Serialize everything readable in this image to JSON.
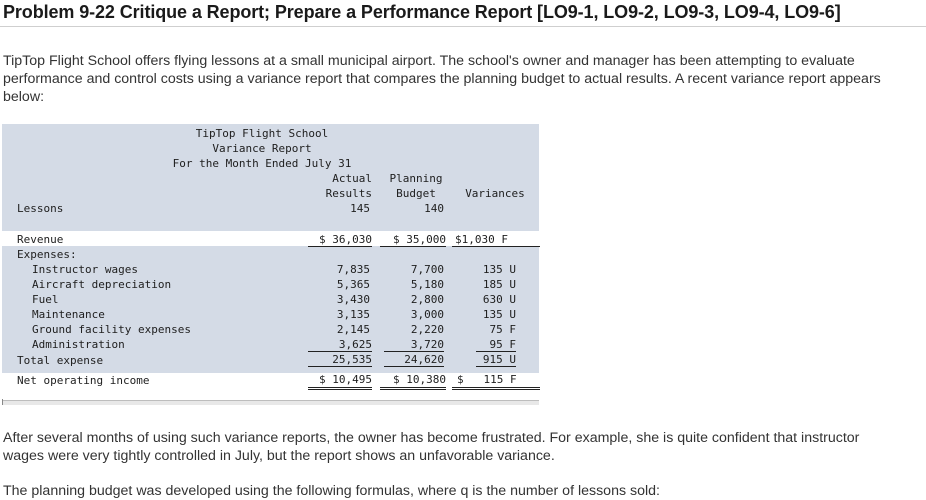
{
  "heading": "Problem 9-22 Critique a Report; Prepare a Performance Report [LO9-1, LO9-2, LO9-3, LO9-4, LO9-6]",
  "intro": "TipTop Flight School offers flying lessons at a small municipal airport. The school's owner and manager has been attempting to evaluate performance and control costs using a variance report that compares the planning budget to actual results. A recent variance report appears below:",
  "report": {
    "company": "TipTop Flight School",
    "name": "Variance Report",
    "period": "For the Month Ended July 31",
    "col_actual_1": "Actual",
    "col_actual_2": "Results",
    "col_planning_1": "Planning",
    "col_planning_2": "Budget",
    "col_variances": "Variances",
    "lessons": {
      "label": "Lessons",
      "actual": "145",
      "budget": "140"
    },
    "revenue": {
      "label": "Revenue",
      "actual": "$ 36,030",
      "budget": "$ 35,000",
      "variance": "$1,030 F"
    },
    "expenses_label": "Expenses:",
    "expenses": [
      {
        "label": "Instructor wages",
        "actual": "7,835",
        "budget": "7,700",
        "variance": "135 U"
      },
      {
        "label": "Aircraft depreciation",
        "actual": "5,365",
        "budget": "5,180",
        "variance": "185 U"
      },
      {
        "label": "Fuel",
        "actual": "3,430",
        "budget": "2,800",
        "variance": "630 U"
      },
      {
        "label": "Maintenance",
        "actual": "3,135",
        "budget": "3,000",
        "variance": "135 U"
      },
      {
        "label": "Ground facility expenses",
        "actual": "2,145",
        "budget": "2,220",
        "variance": "75 F"
      },
      {
        "label": "Administration",
        "actual": "3,625",
        "budget": "3,720",
        "variance": "95 F"
      }
    ],
    "total": {
      "label": "Total expense",
      "actual": "25,535",
      "budget": "24,620",
      "variance": "915 U"
    },
    "noi": {
      "label": "Net operating income",
      "actual": "$ 10,495",
      "budget": "$ 10,380",
      "variance": "$   115 F"
    }
  },
  "after": "After several months of using such variance reports, the owner has become frustrated. For example, she is quite confident that instructor wages were very tightly controlled in July, but the report shows an unfavorable variance.",
  "cutoff": "The planning budget was developed using the following formulas, where q is the number of lessons sold:"
}
